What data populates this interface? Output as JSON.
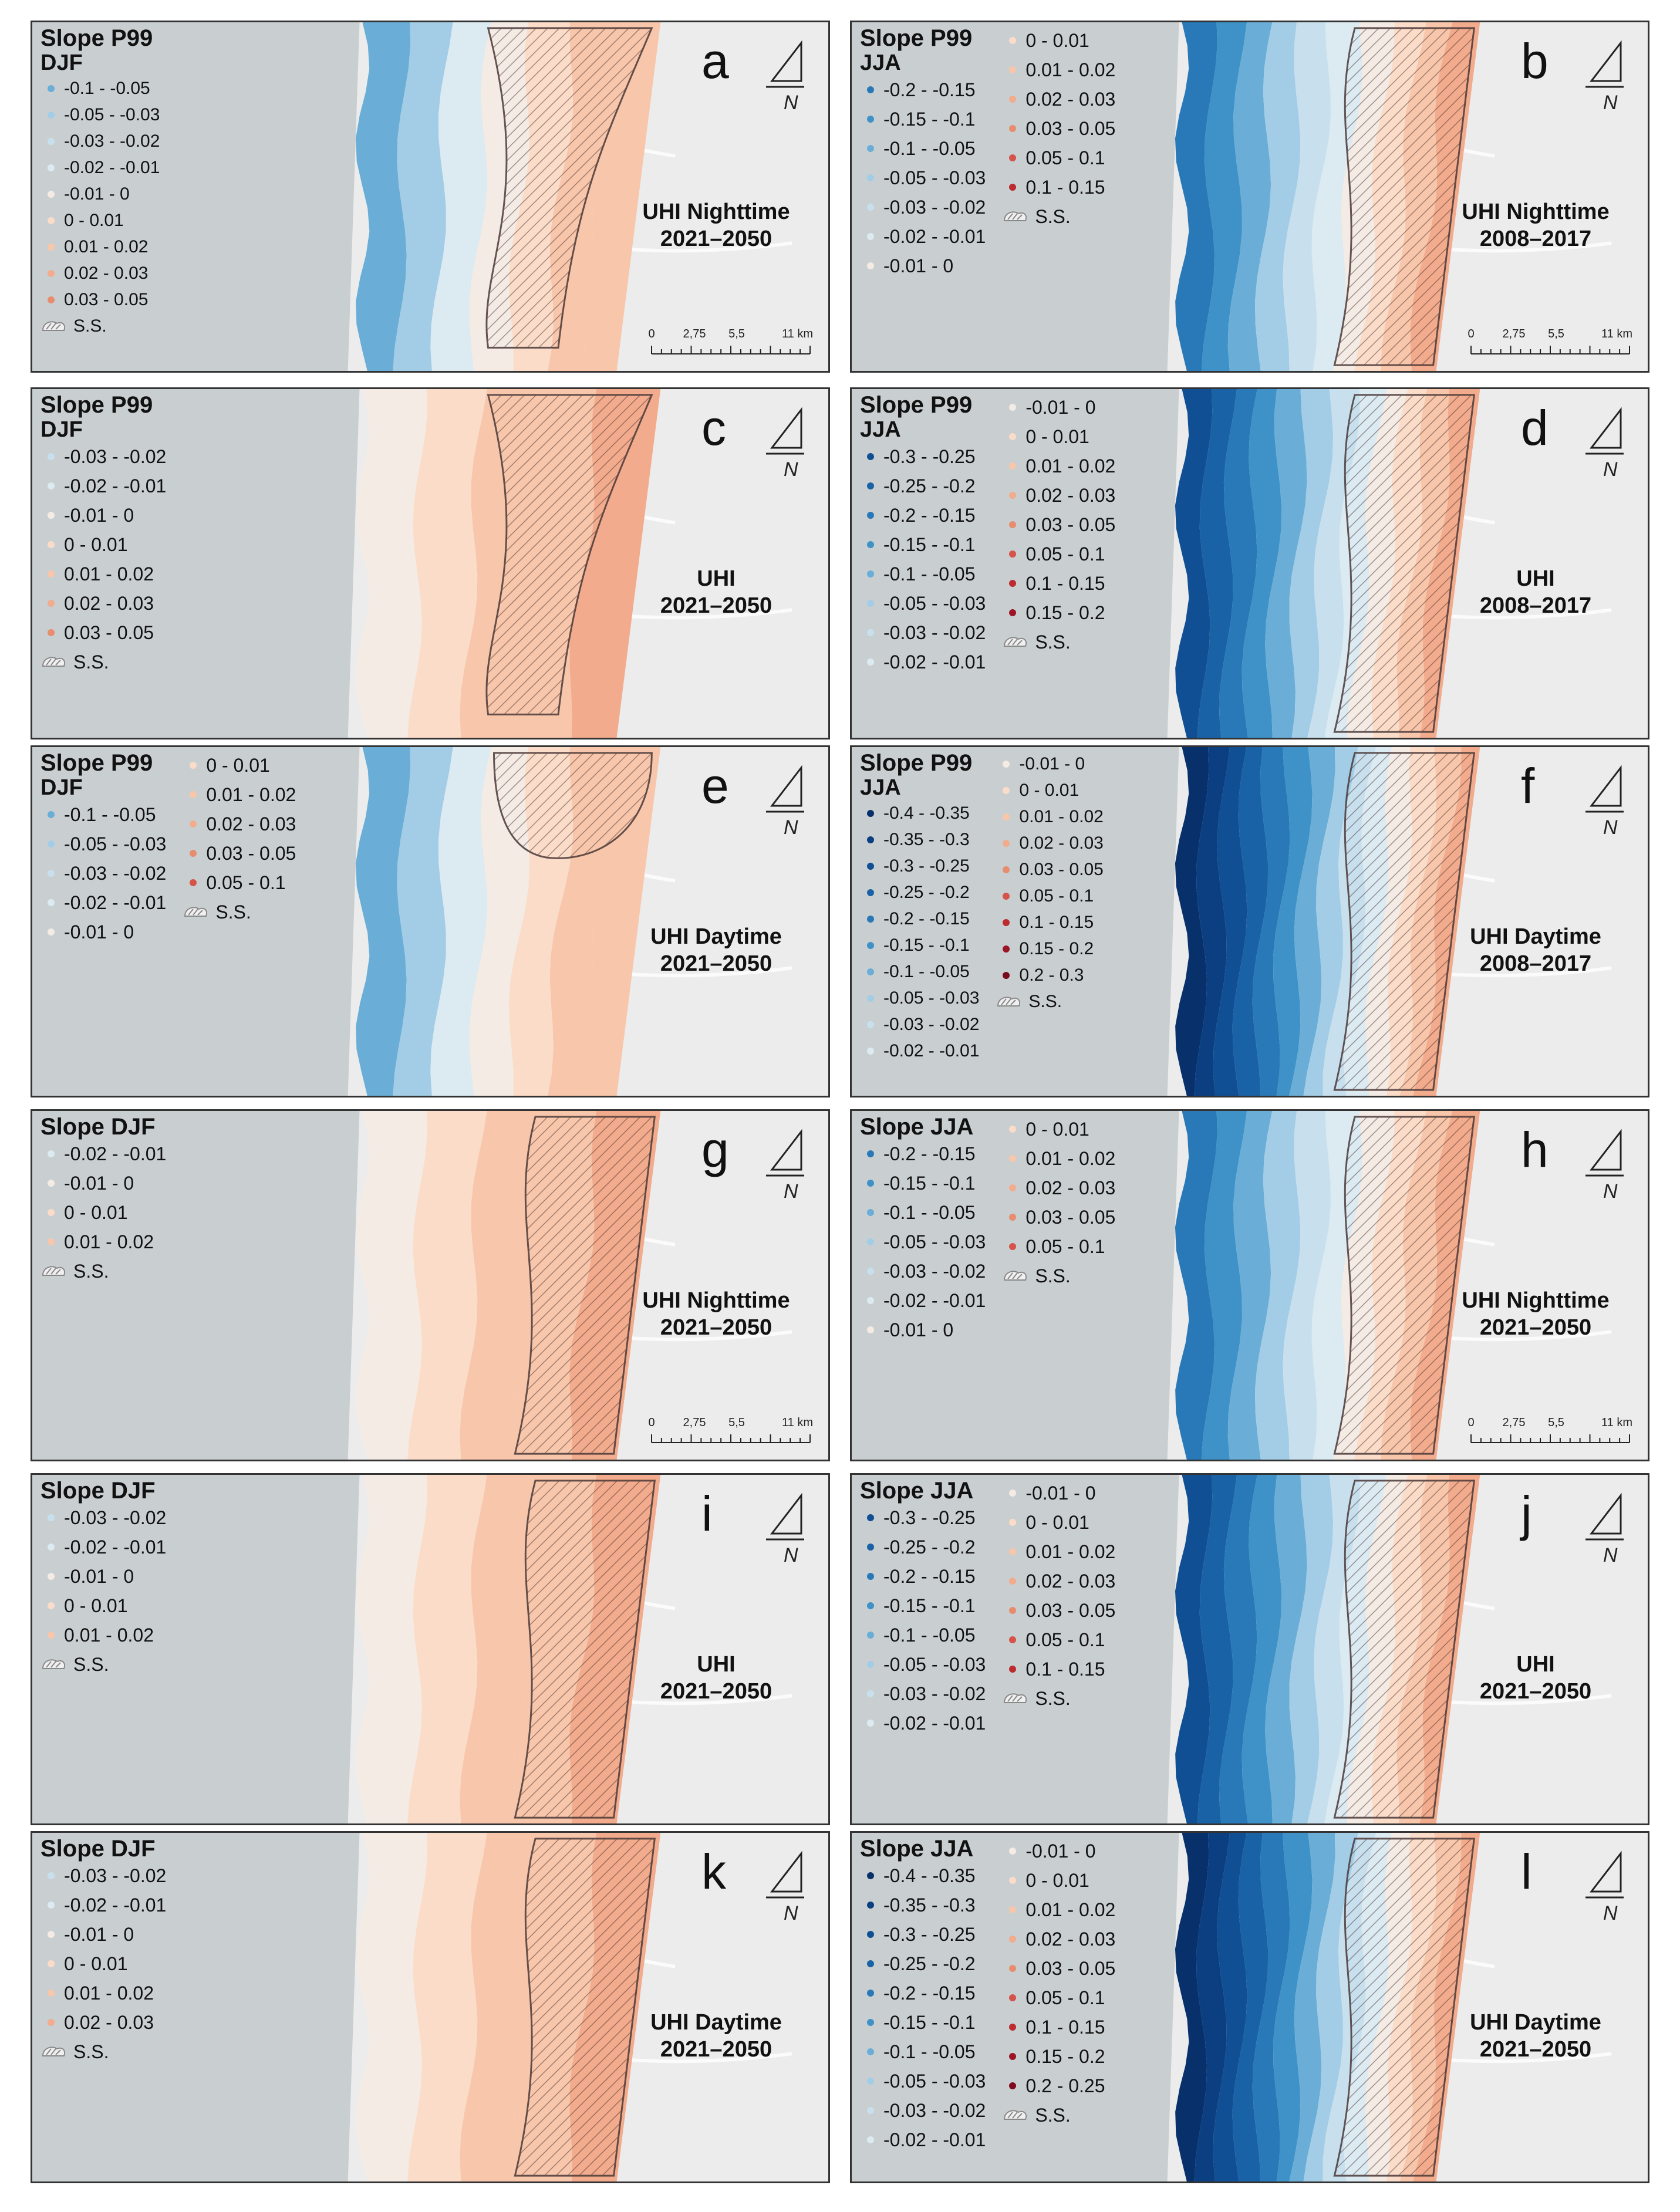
{
  "ss_label": "S.S.",
  "north_label": "N",
  "scale": {
    "ticks": [
      "0",
      "2,75",
      "5,5",
      "11 km"
    ]
  },
  "colors": {
    "-0.4 - -0.35": "#08306b",
    "-0.35 - -0.3": "#0b3f82",
    "-0.3 - -0.25": "#104f93",
    "-0.25 - -0.2": "#1a62a6",
    "-0.2 - -0.15": "#2979b8",
    "-0.15 - -0.1": "#3e92c7",
    "-0.1 - -0.05": "#6aaed8",
    "-0.05 - -0.03": "#a3cde6",
    "-0.03 - -0.02": "#c8e0ee",
    "-0.02 - -0.01": "#dceaf2",
    "-0.01 - 0": "#f4ebe4",
    "0 - 0.01": "#fbdcc8",
    "0.01 - 0.02": "#f8c6aa",
    "0.02 - 0.03": "#f2ab8c",
    "0.03 - 0.05": "#e88c6e",
    "0.05 - 0.1": "#d6534a",
    "0.1 - 0.15": "#bd2b2f",
    "0.15 - 0.2": "#9c1526",
    "0.2 - 0.25": "#810a1f",
    "0.2 - 0.3": "#7a0a1e"
  },
  "panels": [
    {
      "letter": "a",
      "title": "Slope P99",
      "subtitle": "DJF",
      "caption": [
        "UHI Nighttime",
        "2021–2050"
      ],
      "scale": true,
      "kind": "mixed",
      "redband": "mid",
      "columns": [
        [
          "-0.1 - -0.05",
          "-0.05 - -0.03",
          "-0.03 - -0.02",
          "-0.02 - -0.01",
          "-0.01 - 0",
          "0 - 0.01",
          "0.01 - 0.02",
          "0.02 - 0.03",
          "0.03 - 0.05",
          "SS"
        ]
      ]
    },
    {
      "letter": "b",
      "title": "Slope P99",
      "subtitle": "JJA",
      "caption": [
        "UHI Nighttime",
        "2008–2017"
      ],
      "scale": true,
      "kind": "blue",
      "redband": "east",
      "columns": [
        [
          "-0.2 - -0.15",
          "-0.15 - -0.1",
          "-0.1 - -0.05",
          "-0.05 - -0.03",
          "-0.03 - -0.02",
          "-0.02 - -0.01",
          "-0.01 - 0"
        ],
        [
          "0 - 0.01",
          "0.01 - 0.02",
          "0.02 - 0.03",
          "0.03 - 0.05",
          "0.05 - 0.1",
          "0.1 - 0.15",
          "SS"
        ]
      ]
    },
    {
      "letter": "c",
      "title": "Slope P99",
      "subtitle": "DJF",
      "caption": [
        "UHI",
        "2021–2050"
      ],
      "scale": false,
      "kind": "warm",
      "redband": "mid",
      "columns": [
        [
          "-0.03 - -0.02",
          "-0.02 - -0.01",
          "-0.01 - 0",
          "0 - 0.01",
          "0.01 - 0.02",
          "0.02 - 0.03",
          "0.03 - 0.05",
          "SS"
        ]
      ]
    },
    {
      "letter": "d",
      "title": "Slope P99",
      "subtitle": "JJA",
      "caption": [
        "UHI",
        "2008–2017"
      ],
      "scale": false,
      "kind": "blue",
      "redband": "east",
      "columns": [
        [
          "-0.3 - -0.25",
          "-0.25 - -0.2",
          "-0.2 - -0.15",
          "-0.15 - -0.1",
          "-0.1 - -0.05",
          "-0.05 - -0.03",
          "-0.03 - -0.02",
          "-0.02 - -0.01"
        ],
        [
          "-0.01 - 0",
          "0 - 0.01",
          "0.01 - 0.02",
          "0.02 - 0.03",
          "0.03 - 0.05",
          "0.05 - 0.1",
          "0.1 - 0.15",
          "0.15 - 0.2",
          "SS"
        ]
      ]
    },
    {
      "letter": "e",
      "title": "Slope P99",
      "subtitle": "DJF",
      "caption": [
        "UHI Daytime",
        "2021–2050"
      ],
      "scale": false,
      "kind": "mixed",
      "redband": "top",
      "columns": [
        [
          "-0.1 - -0.05",
          "-0.05 - -0.03",
          "-0.03 - -0.02",
          "-0.02 - -0.01",
          "-0.01 - 0"
        ],
        [
          "0 - 0.01",
          "0.01 - 0.02",
          "0.02 - 0.03",
          "0.03 - 0.05",
          "0.05 - 0.1",
          "SS"
        ]
      ]
    },
    {
      "letter": "f",
      "title": "Slope P99",
      "subtitle": "JJA",
      "caption": [
        "UHI Daytime",
        "2008–2017"
      ],
      "scale": false,
      "kind": "blue",
      "redband": "east",
      "columns": [
        [
          "-0.4 - -0.35",
          "-0.35 - -0.3",
          "-0.3 - -0.25",
          "-0.25 - -0.2",
          "-0.2 - -0.15",
          "-0.15 - -0.1",
          "-0.1 - -0.05",
          "-0.05 - -0.03",
          "-0.03 - -0.02",
          "-0.02 - -0.01"
        ],
        [
          "-0.01 - 0",
          "0 - 0.01",
          "0.01 - 0.02",
          "0.02 - 0.03",
          "0.03 - 0.05",
          "0.05 - 0.1",
          "0.1 - 0.15",
          "0.15 - 0.2",
          "0.2 - 0.3",
          "SS"
        ]
      ]
    },
    {
      "letter": "g",
      "title": "Slope DJF",
      "subtitle": "",
      "caption": [
        "UHI Nighttime",
        "2021–2050"
      ],
      "scale": true,
      "kind": "warm",
      "redband": "east",
      "columns": [
        [
          "-0.02 - -0.01",
          "-0.01 - 0",
          "0 - 0.01",
          "0.01 - 0.02",
          "SS"
        ]
      ]
    },
    {
      "letter": "h",
      "title": "Slope JJA",
      "subtitle": "",
      "caption": [
        "UHI Nighttime",
        "2021–2050"
      ],
      "scale": true,
      "kind": "blue",
      "redband": "east",
      "columns": [
        [
          "-0.2 - -0.15",
          "-0.15 - -0.1",
          "-0.1 - -0.05",
          "-0.05 - -0.03",
          "-0.03 - -0.02",
          "-0.02 - -0.01",
          "-0.01 - 0"
        ],
        [
          "0 - 0.01",
          "0.01 - 0.02",
          "0.02 - 0.03",
          "0.03 - 0.05",
          "0.05 - 0.1",
          "SS"
        ]
      ]
    },
    {
      "letter": "i",
      "title": "Slope DJF",
      "subtitle": "",
      "caption": [
        "UHI",
        "2021–2050"
      ],
      "scale": false,
      "kind": "warm",
      "redband": "east",
      "columns": [
        [
          "-0.03 - -0.02",
          "-0.02 - -0.01",
          "-0.01 - 0",
          "0 - 0.01",
          "0.01 - 0.02",
          "SS"
        ]
      ]
    },
    {
      "letter": "j",
      "title": "Slope JJA",
      "subtitle": "",
      "caption": [
        "UHI",
        "2021–2050"
      ],
      "scale": false,
      "kind": "blue",
      "redband": "east",
      "columns": [
        [
          "-0.3 - -0.25",
          "-0.25 - -0.2",
          "-0.2 - -0.15",
          "-0.15 - -0.1",
          "-0.1 - -0.05",
          "-0.05 - -0.03",
          "-0.03 - -0.02",
          "-0.02 - -0.01"
        ],
        [
          "-0.01 - 0",
          "0 - 0.01",
          "0.01 - 0.02",
          "0.02 - 0.03",
          "0.03 - 0.05",
          "0.05 - 0.1",
          "0.1 - 0.15",
          "SS"
        ]
      ]
    },
    {
      "letter": "k",
      "title": "Slope DJF",
      "subtitle": "",
      "caption": [
        "UHI Daytime",
        "2021–2050"
      ],
      "scale": false,
      "kind": "warm",
      "redband": "east",
      "columns": [
        [
          "-0.03 - -0.02",
          "-0.02 - -0.01",
          "-0.01 - 0",
          "0 - 0.01",
          "0.01 - 0.02",
          "0.02 - 0.03",
          "SS"
        ]
      ]
    },
    {
      "letter": "l",
      "title": "Slope JJA",
      "subtitle": "",
      "caption": [
        "UHI Daytime",
        "2021–2050"
      ],
      "scale": false,
      "kind": "blue",
      "redband": "east",
      "columns": [
        [
          "-0.4 - -0.35",
          "-0.35 - -0.3",
          "-0.3 - -0.25",
          "-0.25 - -0.2",
          "-0.2 - -0.15",
          "-0.15 - -0.1",
          "-0.1 - -0.05",
          "-0.05 - -0.03",
          "-0.03 - -0.02",
          "-0.02 - -0.01"
        ],
        [
          "-0.01 - 0",
          "0 - 0.01",
          "0.01 - 0.02",
          "0.02 - 0.03",
          "0.03 - 0.05",
          "0.05 - 0.1",
          "0.1 - 0.15",
          "0.15 - 0.2",
          "0.2 - 0.25",
          "SS"
        ]
      ]
    }
  ]
}
